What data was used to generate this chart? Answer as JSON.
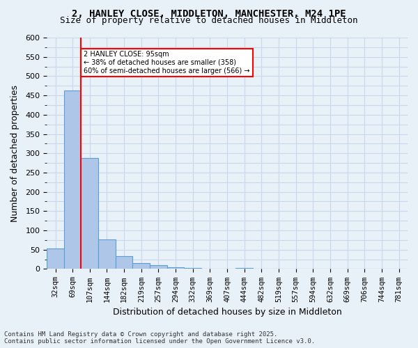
{
  "title_line1": "2, HANLEY CLOSE, MIDDLETON, MANCHESTER, M24 1PE",
  "title_line2": "Size of property relative to detached houses in Middleton",
  "xlabel": "Distribution of detached houses by size in Middleton",
  "ylabel": "Number of detached properties",
  "footer_line1": "Contains HM Land Registry data © Crown copyright and database right 2025.",
  "footer_line2": "Contains public sector information licensed under the Open Government Licence v3.0.",
  "categories": [
    "32sqm",
    "69sqm",
    "107sqm",
    "144sqm",
    "182sqm",
    "219sqm",
    "257sqm",
    "294sqm",
    "332sqm",
    "369sqm",
    "407sqm",
    "444sqm",
    "482sqm",
    "519sqm",
    "557sqm",
    "594sqm",
    "632sqm",
    "669sqm",
    "706sqm",
    "744sqm",
    "781sqm"
  ],
  "values": [
    53,
    462,
    287,
    76,
    33,
    15,
    9,
    5,
    3,
    0,
    0,
    2,
    0,
    0,
    0,
    0,
    0,
    0,
    0,
    0,
    0
  ],
  "bar_color": "#aec6e8",
  "bar_edge_color": "#5a9fd4",
  "grid_color": "#c8d8e8",
  "background_color": "#e8f0f8",
  "vline_x": 1.5,
  "vline_color": "red",
  "annotation_text": "2 HANLEY CLOSE: 95sqm\n← 38% of detached houses are smaller (358)\n60% of semi-detached houses are larger (566) →",
  "annotation_box_color": "white",
  "annotation_box_edge_color": "red",
  "ylim": [
    0,
    600
  ],
  "yticks": [
    0,
    50,
    100,
    150,
    200,
    250,
    300,
    350,
    400,
    450,
    500,
    550,
    600
  ]
}
